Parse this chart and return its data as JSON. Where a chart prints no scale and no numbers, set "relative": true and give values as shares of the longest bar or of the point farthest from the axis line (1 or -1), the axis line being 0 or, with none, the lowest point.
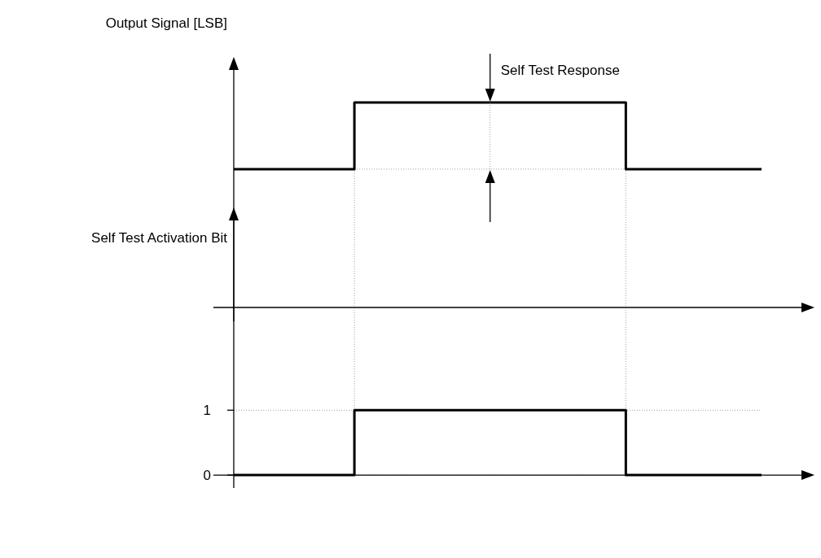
{
  "chart_data": [
    {
      "type": "step",
      "ylabel": "Output Signal [LSB]",
      "relative": true,
      "tick_labels": false,
      "color": "#000000",
      "categories": [
        null,
        null,
        null,
        null,
        null,
        null,
        null,
        null,
        null,
        null,
        null,
        null,
        null,
        null,
        null,
        null,
        null,
        null,
        null,
        null,
        null,
        null,
        null,
        null,
        null,
        null,
        null,
        null,
        null,
        null,
        null,
        null,
        null,
        null,
        null,
        null
      ],
      "values": [
        0.675,
        0.675,
        0.675,
        0.675,
        0.675,
        0.675,
        0.675,
        0.675,
        1,
        1,
        1,
        1,
        1,
        1,
        1,
        1,
        1,
        1,
        1,
        1,
        1,
        1,
        1,
        1,
        1,
        1,
        0.675,
        0.675,
        0.675,
        0.675,
        0.675,
        0.675,
        0.675,
        0.675,
        0.675,
        0.675
      ],
      "annotations": [
        "Self Test Response"
      ],
      "ref_lines": [
        {
          "axis": "y",
          "value": 0.675,
          "color": "#888888",
          "line_style": "dotted"
        }
      ]
    },
    {
      "type": "step",
      "ylabel": "Self Test Activation Bit",
      "tick_labels": "y",
      "color": "#000000",
      "grid": "y",
      "ylim": [
        -0.2,
        4
      ],
      "yticks": [
        0,
        1
      ],
      "categories": [
        null,
        null,
        null,
        null,
        null,
        null,
        null,
        null,
        null,
        null,
        null,
        null,
        null,
        null,
        null,
        null,
        null,
        null,
        null,
        null,
        null,
        null,
        null,
        null,
        null,
        null,
        null,
        null,
        null,
        null,
        null,
        null,
        null,
        null,
        null,
        null
      ],
      "values": [
        0,
        0,
        0,
        0,
        0,
        0,
        0,
        0,
        1,
        1,
        1,
        1,
        1,
        1,
        1,
        1,
        1,
        1,
        1,
        1,
        1,
        1,
        1,
        1,
        1,
        1,
        0,
        0,
        0,
        0,
        0,
        0,
        0,
        0,
        0,
        0
      ]
    }
  ]
}
